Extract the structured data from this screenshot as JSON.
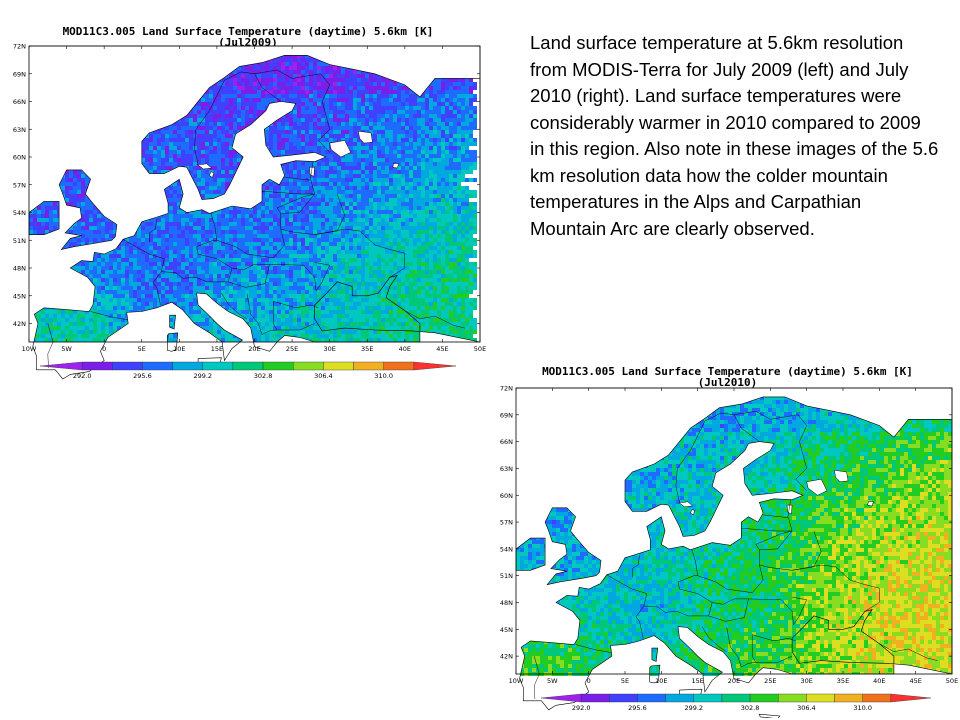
{
  "maps": [
    {
      "title": "MOD11C3.005 Land Surface Temperature (daytime) 5.6km [K]",
      "period": "(Jul2009)",
      "year": 2009
    },
    {
      "title": "MOD11C3.005 Land Surface Temperature (daytime) 5.6km [K]",
      "period": "(Jul2010)",
      "year": 2010
    }
  ],
  "axes": {
    "lat_labels": [
      "72N",
      "69N",
      "66N",
      "63N",
      "60N",
      "57N",
      "54N",
      "51N",
      "48N",
      "45N",
      "42N"
    ],
    "lon_labels": [
      "10W",
      "5W",
      "0",
      "5E",
      "10E",
      "15E",
      "20E",
      "25E",
      "30E",
      "35E",
      "40E",
      "45E",
      "50E"
    ]
  },
  "colorbar": {
    "labels": [
      "292.0",
      "295.6",
      "299.2",
      "302.8",
      "306.4",
      "310.0"
    ],
    "colors": [
      "#a020f0",
      "#7a1fe8",
      "#4040ff",
      "#1e6cff",
      "#00a8e0",
      "#00c8c0",
      "#00c878",
      "#22cc22",
      "#88dd22",
      "#dddd22",
      "#f0b020",
      "#f07020",
      "#ff3030"
    ]
  },
  "caption": {
    "text": " Land surface temperature at 5.6km resolution from MODIS-Terra for  July 2009 (left) and July 2010 (right).  Land surface temperatures were considerably warmer in 2010 compared to 2009 in this region.  Also note in these images of the 5.6 km resolution data how the colder mountain temperatures in the Alps and Carpathian Mountain Arc are clearly observed."
  }
}
